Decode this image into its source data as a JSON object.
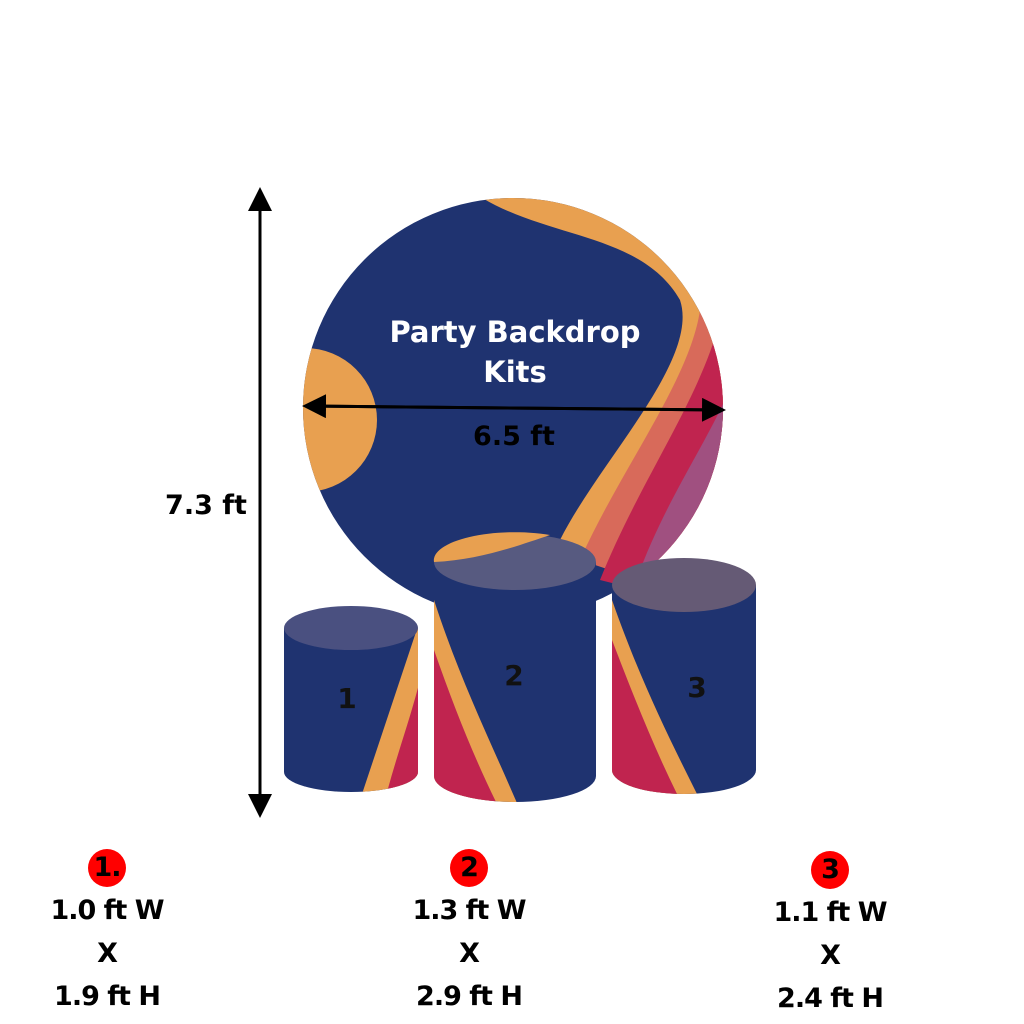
{
  "backdrop": {
    "title_line1": "Party Backdrop",
    "title_line2": "Kits",
    "width_label": "6.5 ft",
    "height_label": "7.3 ft"
  },
  "cylinders": [
    {
      "label": "1"
    },
    {
      "label": "2"
    },
    {
      "label": "3"
    }
  ],
  "specs": [
    {
      "badge": "1.",
      "width": "1.0 ft W",
      "x": "X",
      "height": "1.9 ft H"
    },
    {
      "badge": "2",
      "width": "1.3 ft W",
      "x": "X",
      "height": "2.9 ft H"
    },
    {
      "badge": "3",
      "width": "1.1 ft W",
      "x": "X",
      "height": "2.4 ft H"
    }
  ],
  "colors": {
    "navy": "#1f3370",
    "orange": "#e8a050",
    "crimson": "#c0244f",
    "mauve": "#a05080",
    "badge": "#ff0000"
  }
}
